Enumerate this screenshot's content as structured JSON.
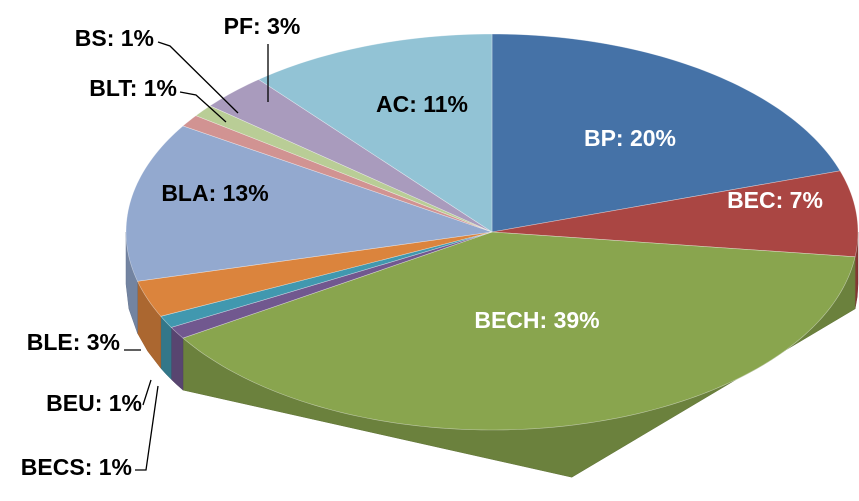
{
  "chart_data": {
    "type": "pie",
    "categories": [
      "BP",
      "BEC",
      "BECH",
      "BECS",
      "BEU",
      "BLE",
      "BLA",
      "BLT",
      "BS",
      "PF",
      "AC"
    ],
    "values": [
      20,
      7,
      39,
      1,
      1,
      3,
      13,
      1,
      1,
      3,
      11
    ],
    "value_labels": [
      "BP: 20%",
      "BEC: 7%",
      "BECH: 39%",
      "BECS: 1%",
      "BEU: 1%",
      "BLE: 3%",
      "BLA: 13%",
      "BLT: 1%",
      "BS: 1%",
      "PF: 3%",
      "AC: 11%"
    ],
    "colors": [
      "#4572a7",
      "#aa4643",
      "#89a54e",
      "#71588f",
      "#4198af",
      "#db843d",
      "#93a9cf",
      "#d19392",
      "#b9cd96",
      "#a99bbd",
      "#92c3d5"
    ]
  }
}
